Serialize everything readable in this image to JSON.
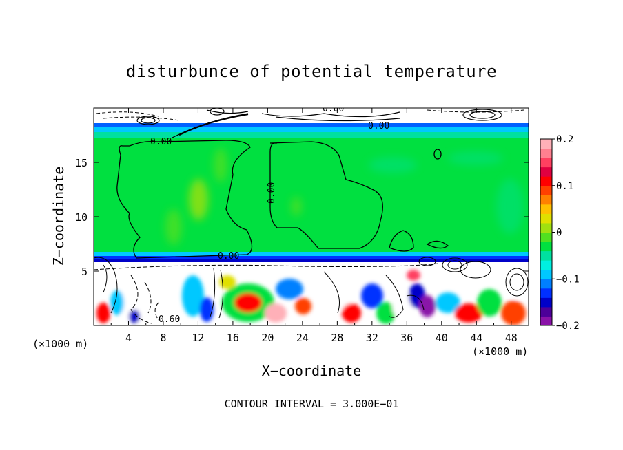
{
  "chart_data": {
    "type": "heatmap",
    "title": "disturbunce of potential temperature",
    "xlabel": "X−coordinate",
    "ylabel": "Z−coordinate",
    "x_unit": "(×1000 m)",
    "y_unit": "(×1000 m)",
    "xlim": [
      0,
      50
    ],
    "ylim": [
      0,
      20
    ],
    "x_ticks": [
      4,
      8,
      12,
      16,
      20,
      24,
      28,
      32,
      36,
      40,
      44,
      48
    ],
    "y_ticks": [
      5,
      10,
      15
    ],
    "footer": "CONTOUR INTERVAL = 3.000E−01",
    "colorbar": {
      "min": -0.2,
      "max": 0.2,
      "ticks": [
        {
          "value": 0.2,
          "label": "0.2"
        },
        {
          "value": 0.1,
          "label": "0.1"
        },
        {
          "value": 0,
          "label": "0"
        },
        {
          "value": -0.1,
          "label": "−0.1"
        },
        {
          "value": -0.2,
          "label": "−0.2"
        }
      ],
      "colors": [
        "#8a12a8",
        "#4d0099",
        "#0000c8",
        "#0030ff",
        "#0080ff",
        "#00c8ff",
        "#00f0e0",
        "#00e0a0",
        "#00e040",
        "#50e020",
        "#a0e010",
        "#e0e000",
        "#ffc000",
        "#ff8000",
        "#ff4000",
        "#ff0000",
        "#e00040",
        "#ff4060",
        "#ff8090",
        "#ffb0b8"
      ]
    },
    "contour_labels": [
      {
        "text": "0.60",
        "x": 27.5,
        "y": 19.6
      },
      {
        "text": "0.00",
        "x": 33.5,
        "y": 18.5
      },
      {
        "text": "0.00",
        "x": 8.2,
        "y": 17.0
      },
      {
        "text": "0.00",
        "x": 20.5,
        "y": 12.5
      },
      {
        "text": "0.00",
        "x": 15.7,
        "y": 6.4
      },
      {
        "text": "0.60",
        "x": 8.0,
        "y": 0.6
      }
    ]
  }
}
